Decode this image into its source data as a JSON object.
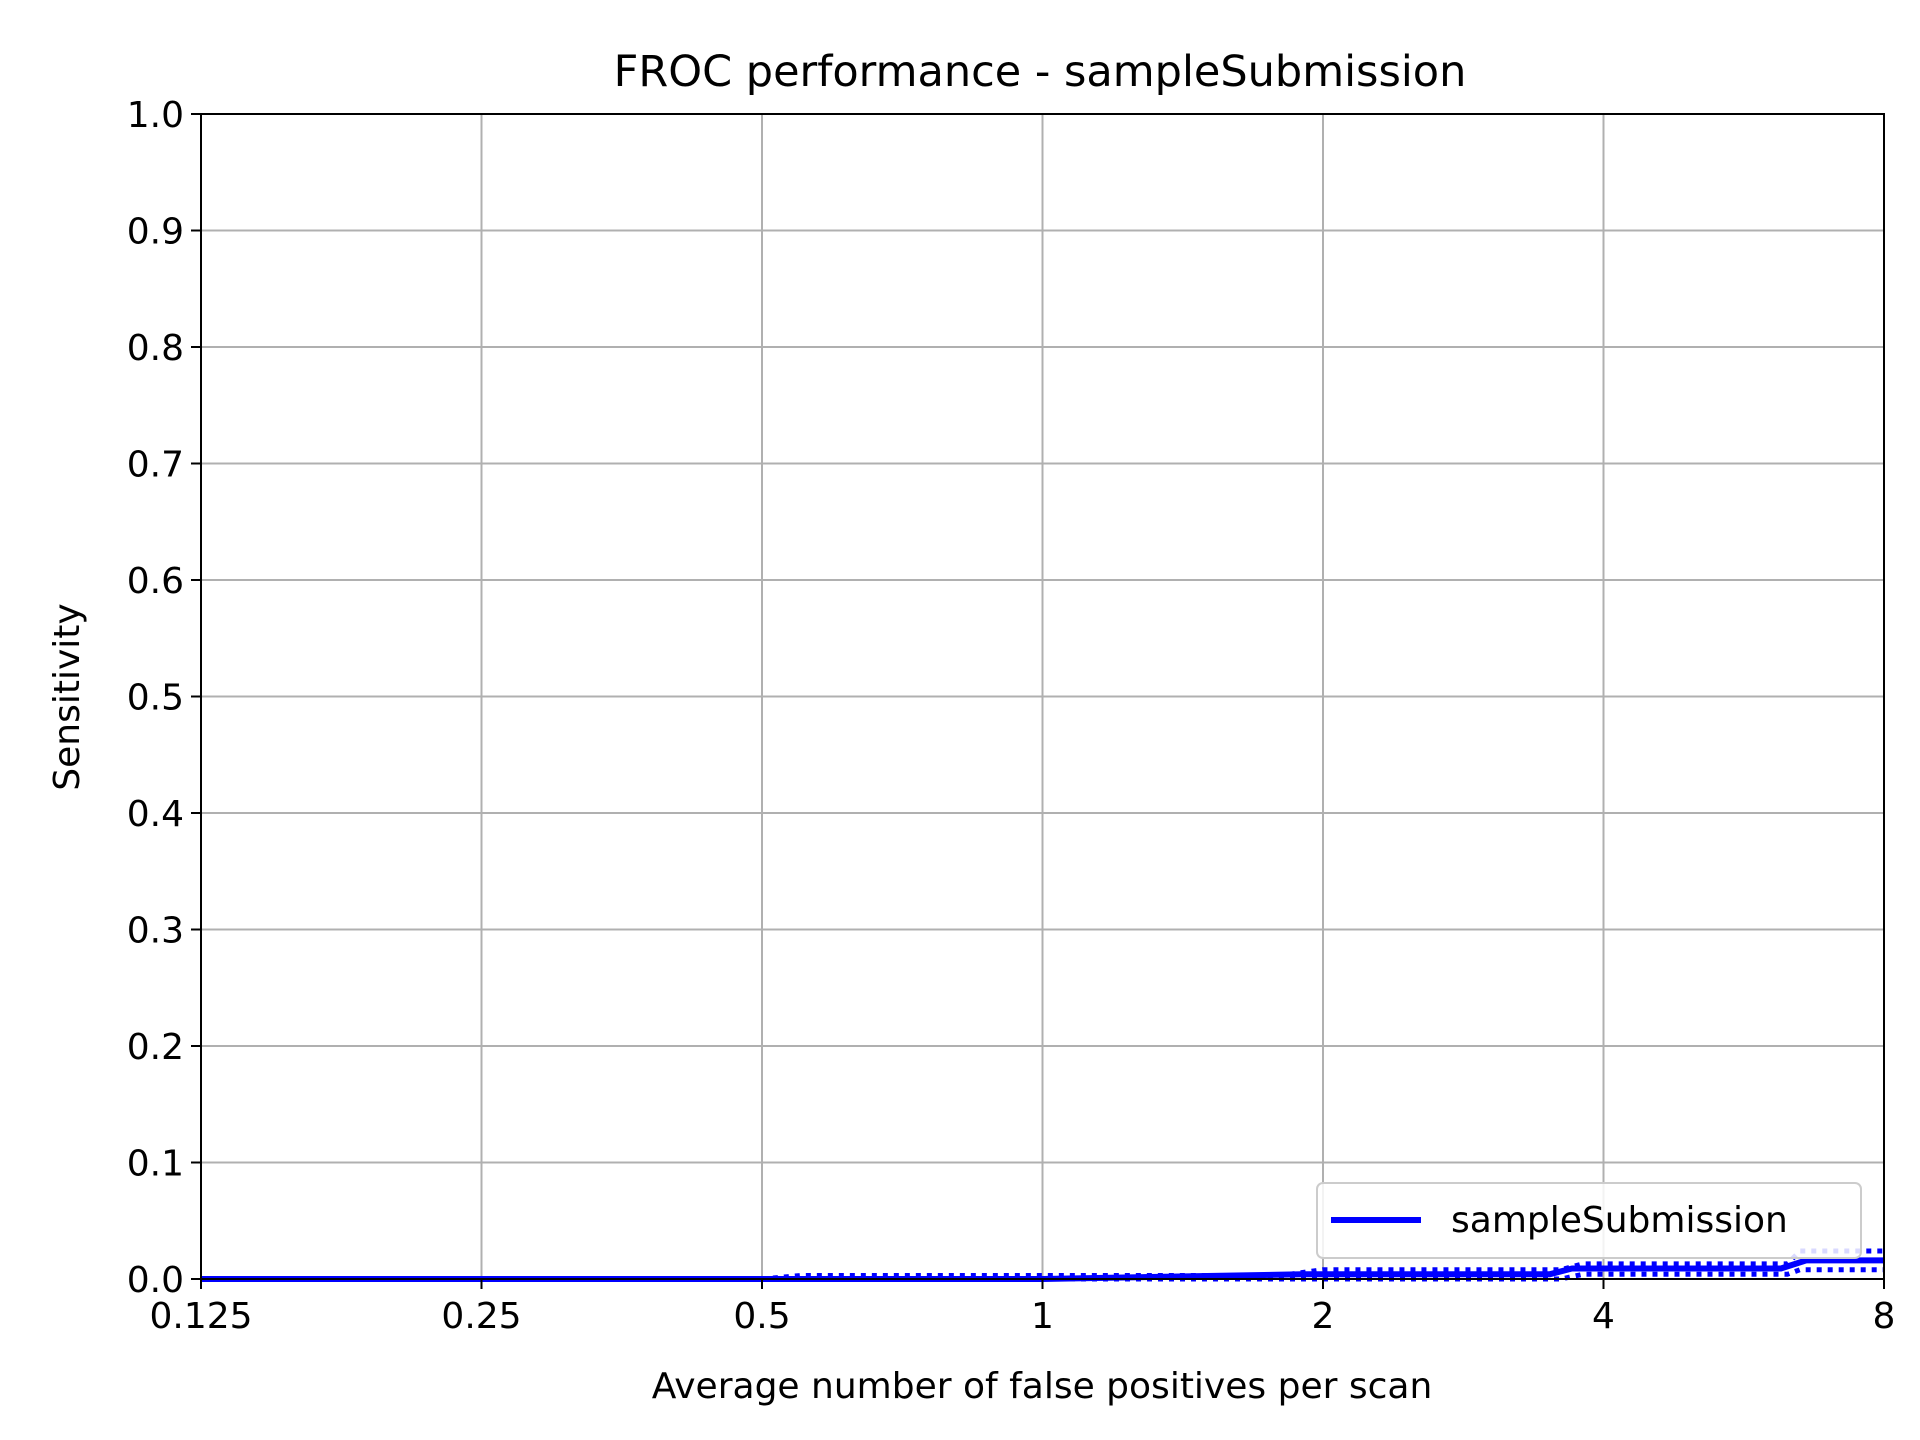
{
  "chart_data": {
    "type": "line",
    "title": "FROC performance - sampleSubmission",
    "xlabel": "Average number of false positives per scan",
    "ylabel": "Sensitivity",
    "xscale": "log2",
    "xlim": [
      0.125,
      8
    ],
    "ylim": [
      0,
      1
    ],
    "xticks": [
      0.125,
      0.25,
      0.5,
      1,
      2,
      4,
      8
    ],
    "xtick_labels": [
      "0.125",
      "0.25",
      "0.5",
      "1",
      "2",
      "4",
      "8"
    ],
    "yticks": [
      0.0,
      0.1,
      0.2,
      0.3,
      0.4,
      0.5,
      0.6,
      0.7,
      0.8,
      0.9,
      1.0
    ],
    "ytick_labels": [
      "0.0",
      "0.1",
      "0.2",
      "0.3",
      "0.4",
      "0.5",
      "0.6",
      "0.7",
      "0.8",
      "0.9",
      "1.0"
    ],
    "grid": true,
    "legend_position": "lower right",
    "series": [
      {
        "name": "sampleSubmission",
        "color": "#0000ff",
        "style": "solid",
        "x": [
          0.125,
          0.5,
          1,
          1.9,
          3.5,
          3.7,
          6.2,
          6.6,
          8
        ],
        "y": [
          0.0,
          0.0,
          0.0,
          0.004,
          0.004,
          0.009,
          0.009,
          0.016,
          0.016
        ]
      },
      {
        "color": "#0000ff",
        "style": "dotted",
        "x": [
          0.125,
          0.5,
          0.55,
          1.8,
          2.0,
          3.6,
          3.8,
          6.3,
          6.5,
          8
        ],
        "y": [
          0.0,
          0.0,
          0.003,
          0.003,
          0.008,
          0.008,
          0.013,
          0.013,
          0.024,
          0.024
        ]
      },
      {
        "color": "#0000ff",
        "style": "dotted",
        "x": [
          0.125,
          3.6,
          3.8,
          6.3,
          6.5,
          8
        ],
        "y": [
          0.0,
          0.0,
          0.004,
          0.004,
          0.008,
          0.008
        ]
      }
    ]
  }
}
